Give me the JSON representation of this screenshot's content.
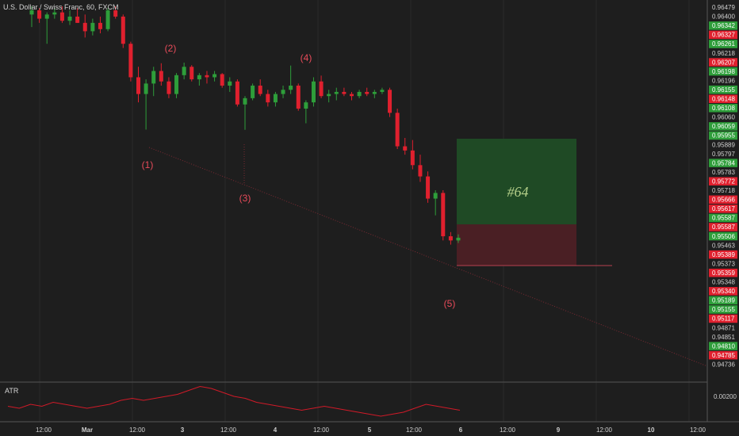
{
  "header": {
    "symbol_title": "U.S. Dollar / Swiss Franc, 60, FXCM"
  },
  "colors": {
    "background": "#1e1e1e",
    "up": "#2e9e3a",
    "down": "#e0202e",
    "wave_label": "#e84b5a",
    "atr_line": "#d01a28",
    "target_zone": "#1f4a25",
    "stop_zone": "#4a1f24"
  },
  "chart_data": {
    "type": "candlestick",
    "title": "U.S. Dollar / Swiss Franc, 60, FXCM",
    "price_axis_labels": [
      {
        "value": "0.96479",
        "kind": "neutral"
      },
      {
        "value": "0.96400",
        "kind": "neutral"
      },
      {
        "value": "0.96342",
        "kind": "up"
      },
      {
        "value": "0.96327",
        "kind": "down"
      },
      {
        "value": "0.96261",
        "kind": "up"
      },
      {
        "value": "0.96218",
        "kind": "neutral"
      },
      {
        "value": "0.96207",
        "kind": "down"
      },
      {
        "value": "0.96198",
        "kind": "up"
      },
      {
        "value": "0.96196",
        "kind": "neutral"
      },
      {
        "value": "0.96155",
        "kind": "up"
      },
      {
        "value": "0.96148",
        "kind": "down"
      },
      {
        "value": "0.96108",
        "kind": "up"
      },
      {
        "value": "0.96060",
        "kind": "neutral"
      },
      {
        "value": "0.96059",
        "kind": "up"
      },
      {
        "value": "0.95955",
        "kind": "up"
      },
      {
        "value": "0.95889",
        "kind": "neutral"
      },
      {
        "value": "0.95797",
        "kind": "neutral"
      },
      {
        "value": "0.95784",
        "kind": "up"
      },
      {
        "value": "0.95783",
        "kind": "neutral"
      },
      {
        "value": "0.95772",
        "kind": "down"
      },
      {
        "value": "0.95718",
        "kind": "neutral"
      },
      {
        "value": "0.95666",
        "kind": "down"
      },
      {
        "value": "0.95617",
        "kind": "down"
      },
      {
        "value": "0.95587",
        "kind": "up"
      },
      {
        "value": "0.95587",
        "kind": "down"
      },
      {
        "value": "0.95506",
        "kind": "up"
      },
      {
        "value": "0.95463",
        "kind": "neutral"
      },
      {
        "value": "0.95389",
        "kind": "down"
      },
      {
        "value": "0.95373",
        "kind": "neutral"
      },
      {
        "value": "0.95359",
        "kind": "down"
      },
      {
        "value": "0.95348",
        "kind": "neutral"
      },
      {
        "value": "0.95340",
        "kind": "down"
      },
      {
        "value": "0.95189",
        "kind": "up"
      },
      {
        "value": "0.95155",
        "kind": "up"
      },
      {
        "value": "0.95117",
        "kind": "down"
      },
      {
        "value": "0.94871",
        "kind": "neutral"
      },
      {
        "value": "0.94851",
        "kind": "neutral"
      },
      {
        "value": "0.94810",
        "kind": "up"
      },
      {
        "value": "0.94785",
        "kind": "down"
      },
      {
        "value": "0.94736",
        "kind": "neutral"
      }
    ],
    "x_tick_labels": [
      "12:00",
      "Mar",
      "12:00",
      "3",
      "12:00",
      "4",
      "12:00",
      "5",
      "12:00",
      "6",
      "12:00",
      "9",
      "12:00",
      "10",
      "12:00"
    ],
    "wave_labels": [
      "(1)",
      "(2)",
      "(3)",
      "(4)",
      "(5)"
    ],
    "position_label": "#64",
    "indicator": {
      "name": "ATR",
      "axis_label": "0.00200",
      "values": [
        0.0017,
        0.0016,
        0.0018,
        0.0017,
        0.0019,
        0.0018,
        0.0017,
        0.0016,
        0.0017,
        0.0018,
        0.002,
        0.0021,
        0.002,
        0.0021,
        0.0022,
        0.0023,
        0.0025,
        0.0027,
        0.0026,
        0.0024,
        0.0022,
        0.0021,
        0.0019,
        0.0018,
        0.0017,
        0.0016,
        0.0015,
        0.0016,
        0.0017,
        0.0016,
        0.0015,
        0.0014,
        0.0013,
        0.0012,
        0.0013,
        0.0014,
        0.0016,
        0.0018,
        0.0017,
        0.0016,
        0.0015
      ]
    },
    "candles": [
      [
        0.9644,
        0.96479,
        0.9638,
        0.9646
      ],
      [
        0.9646,
        0.9647,
        0.964,
        0.9642
      ],
      [
        0.9642,
        0.9645,
        0.963,
        0.9644
      ],
      [
        0.9644,
        0.9647,
        0.9642,
        0.9645
      ],
      [
        0.9645,
        0.96479,
        0.964,
        0.9641
      ],
      [
        0.9641,
        0.9646,
        0.9639,
        0.9643
      ],
      [
        0.9643,
        0.9647,
        0.964,
        0.964
      ],
      [
        0.964,
        0.9644,
        0.9633,
        0.9636
      ],
      [
        0.9636,
        0.9642,
        0.9634,
        0.964
      ],
      [
        0.964,
        0.9643,
        0.9635,
        0.9637
      ],
      [
        0.9637,
        0.9647,
        0.9636,
        0.9646
      ],
      [
        0.9646,
        0.96479,
        0.9642,
        0.9643
      ],
      [
        0.9643,
        0.9644,
        0.9628,
        0.963
      ],
      [
        0.963,
        0.9631,
        0.9612,
        0.9614
      ],
      [
        0.9614,
        0.9619,
        0.9602,
        0.9606
      ],
      [
        0.9606,
        0.9613,
        0.9589,
        0.9611
      ],
      [
        0.9611,
        0.9619,
        0.9605,
        0.9617
      ],
      [
        0.9617,
        0.96207,
        0.961,
        0.9612
      ],
      [
        0.9612,
        0.9614,
        0.9604,
        0.9606
      ],
      [
        0.9606,
        0.9616,
        0.9604,
        0.9615
      ],
      [
        0.9615,
        0.9621,
        0.9613,
        0.9619
      ],
      [
        0.9619,
        0.96198,
        0.9612,
        0.9613
      ],
      [
        0.9613,
        0.9616,
        0.961,
        0.9615
      ],
      [
        0.9615,
        0.9617,
        0.9611,
        0.9614
      ],
      [
        0.9614,
        0.9617,
        0.9612,
        0.96155
      ],
      [
        0.96155,
        0.9616,
        0.9609,
        0.961
      ],
      [
        0.961,
        0.9614,
        0.9607,
        0.9612
      ],
      [
        0.9612,
        0.9613,
        0.96,
        0.9601
      ],
      [
        0.9601,
        0.9605,
        0.95889,
        0.9604
      ],
      [
        0.9604,
        0.9611,
        0.9603,
        0.961
      ],
      [
        0.961,
        0.9613,
        0.9605,
        0.9606
      ],
      [
        0.9606,
        0.9608,
        0.96,
        0.9602
      ],
      [
        0.9602,
        0.9607,
        0.96,
        0.9606
      ],
      [
        0.9606,
        0.961,
        0.9604,
        0.9608
      ],
      [
        0.9608,
        0.96196,
        0.9606,
        0.961
      ],
      [
        0.961,
        0.9611,
        0.9598,
        0.9599
      ],
      [
        0.9599,
        0.9603,
        0.9592,
        0.9602
      ],
      [
        0.9602,
        0.9614,
        0.96,
        0.9612
      ],
      [
        0.9612,
        0.96148,
        0.9604,
        0.9605
      ],
      [
        0.9605,
        0.9608,
        0.9602,
        0.9606
      ],
      [
        0.9606,
        0.9609,
        0.9603,
        0.9607
      ],
      [
        0.9607,
        0.9609,
        0.9605,
        0.9606
      ],
      [
        0.9606,
        0.9607,
        0.9603,
        0.9605
      ],
      [
        0.9605,
        0.9608,
        0.9604,
        0.9607
      ],
      [
        0.9607,
        0.9609,
        0.9605,
        0.9606
      ],
      [
        0.9606,
        0.9608,
        0.9604,
        0.9607
      ],
      [
        0.9607,
        0.9609,
        0.9606,
        0.9608
      ],
      [
        0.9608,
        0.9609,
        0.9595,
        0.9597
      ],
      [
        0.9597,
        0.9599,
        0.95797,
        0.9581
      ],
      [
        0.9581,
        0.9585,
        0.9577,
        0.9579
      ],
      [
        0.9579,
        0.9584,
        0.957,
        0.9572
      ],
      [
        0.9572,
        0.9577,
        0.9564,
        0.95666
      ],
      [
        0.95666,
        0.9569,
        0.9554,
        0.9556
      ],
      [
        0.9556,
        0.956,
        0.9548,
        0.95587
      ],
      [
        0.95587,
        0.956,
        0.9536,
        0.9538
      ],
      [
        0.9538,
        0.954,
        0.9534,
        0.9536
      ],
      [
        0.9536,
        0.95389,
        0.95348,
        0.95373
      ]
    ]
  }
}
